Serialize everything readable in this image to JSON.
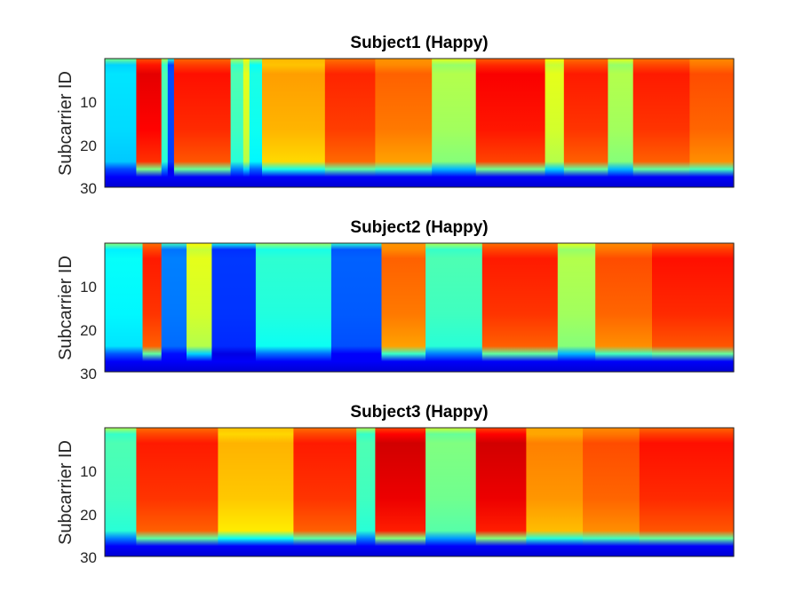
{
  "chart_data": [
    {
      "type": "heatmap",
      "title": "Subject1 (Happy)",
      "ylabel": "Subject1 (Happy)",
      "xlabel": "",
      "ylim": [
        1,
        30
      ],
      "yticks": [
        10,
        20,
        30
      ],
      "x_ticks_shown": false,
      "colormap": "jet",
      "description_segments": [
        {
          "x": [
            0.0,
            0.05
          ],
          "level": 0.35
        },
        {
          "x": [
            0.05,
            0.09
          ],
          "level": 0.9
        },
        {
          "x": [
            0.09,
            0.1
          ],
          "level": 0.45
        },
        {
          "x": [
            0.1,
            0.11
          ],
          "level": 0.2
        },
        {
          "x": [
            0.11,
            0.2
          ],
          "level": 0.86
        },
        {
          "x": [
            0.2,
            0.22
          ],
          "level": 0.45
        },
        {
          "x": [
            0.22,
            0.23
          ],
          "level": 0.6
        },
        {
          "x": [
            0.23,
            0.25
          ],
          "level": 0.4
        },
        {
          "x": [
            0.25,
            0.35
          ],
          "level": 0.72
        },
        {
          "x": [
            0.35,
            0.43
          ],
          "level": 0.84
        },
        {
          "x": [
            0.43,
            0.52
          ],
          "level": 0.78
        },
        {
          "x": [
            0.52,
            0.59
          ],
          "level": 0.55
        },
        {
          "x": [
            0.59,
            0.7
          ],
          "level": 0.88
        },
        {
          "x": [
            0.7,
            0.73
          ],
          "level": 0.6
        },
        {
          "x": [
            0.73,
            0.8
          ],
          "level": 0.85
        },
        {
          "x": [
            0.8,
            0.84
          ],
          "level": 0.55
        },
        {
          "x": [
            0.84,
            0.93
          ],
          "level": 0.85
        },
        {
          "x": [
            0.93,
            1.0
          ],
          "level": 0.8
        }
      ]
    },
    {
      "type": "heatmap",
      "title": "Subject2 (Happy)",
      "ylabel": "Subcarrier ID",
      "xlabel": "",
      "ylim": [
        1,
        30
      ],
      "yticks": [
        10,
        20,
        30
      ],
      "x_ticks_shown": false,
      "colormap": "jet",
      "description_segments": [
        {
          "x": [
            0.0,
            0.06
          ],
          "level": 0.38
        },
        {
          "x": [
            0.06,
            0.09
          ],
          "level": 0.85
        },
        {
          "x": [
            0.09,
            0.13
          ],
          "level": 0.25
        },
        {
          "x": [
            0.13,
            0.17
          ],
          "level": 0.6
        },
        {
          "x": [
            0.17,
            0.24
          ],
          "level": 0.18
        },
        {
          "x": [
            0.24,
            0.36
          ],
          "level": 0.42
        },
        {
          "x": [
            0.36,
            0.44
          ],
          "level": 0.22
        },
        {
          "x": [
            0.44,
            0.51
          ],
          "level": 0.78
        },
        {
          "x": [
            0.51,
            0.6
          ],
          "level": 0.45
        },
        {
          "x": [
            0.6,
            0.72
          ],
          "level": 0.85
        },
        {
          "x": [
            0.72,
            0.78
          ],
          "level": 0.55
        },
        {
          "x": [
            0.78,
            0.87
          ],
          "level": 0.8
        },
        {
          "x": [
            0.87,
            1.0
          ],
          "level": 0.86
        }
      ]
    },
    {
      "type": "heatmap",
      "title": "Subject3 (Happy)",
      "ylabel": "Subcarrier ID",
      "xlabel": "",
      "ylim": [
        1,
        30
      ],
      "yticks": [
        10,
        20,
        30
      ],
      "x_ticks_shown": false,
      "colormap": "jet",
      "description_segments": [
        {
          "x": [
            0.0,
            0.05
          ],
          "level": 0.45
        },
        {
          "x": [
            0.05,
            0.18
          ],
          "level": 0.85
        },
        {
          "x": [
            0.18,
            0.3
          ],
          "level": 0.7
        },
        {
          "x": [
            0.3,
            0.4
          ],
          "level": 0.85
        },
        {
          "x": [
            0.4,
            0.43
          ],
          "level": 0.45
        },
        {
          "x": [
            0.43,
            0.51
          ],
          "level": 0.92
        },
        {
          "x": [
            0.51,
            0.59
          ],
          "level": 0.5
        },
        {
          "x": [
            0.59,
            0.67
          ],
          "level": 0.92
        },
        {
          "x": [
            0.67,
            0.76
          ],
          "level": 0.75
        },
        {
          "x": [
            0.76,
            0.85
          ],
          "level": 0.8
        },
        {
          "x": [
            0.85,
            1.0
          ],
          "level": 0.86
        }
      ]
    }
  ]
}
